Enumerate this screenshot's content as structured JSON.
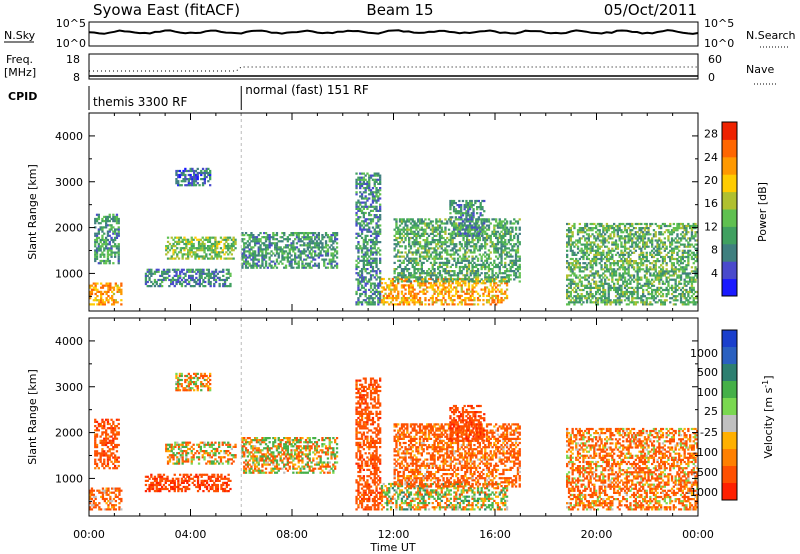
{
  "header": {
    "station": "Syowa East (fitACF)",
    "beam": "Beam 15",
    "date": "05/Oct/2011"
  },
  "noise_panel": {
    "left_label": "N.Sky",
    "right_label": "N.Search",
    "left_ticks": [
      "10^5",
      "10^0"
    ],
    "right_ticks": [
      "10^5",
      "10^0"
    ]
  },
  "freq_panel": {
    "left_label_line1": "Freq.",
    "left_label_line2": "[MHz]",
    "left_ticks": [
      "18",
      "8"
    ],
    "right_ticks": [
      "60",
      "0"
    ],
    "right_label": "Nave"
  },
  "cpid_panel": {
    "label": "CPID",
    "segments": [
      {
        "label": "themis 3300 RF",
        "start_hour": 0,
        "end_hour": 6
      },
      {
        "label": "normal (fast) 151 RF",
        "start_hour": 6,
        "end_hour": 24
      }
    ]
  },
  "chart_data": [
    {
      "type": "heatmap",
      "title": "Power",
      "ylabel": "Slant Range [km]",
      "ylim": [
        180,
        4500
      ],
      "yticks": [
        1000,
        2000,
        3000,
        4000
      ],
      "xlim": [
        0,
        24
      ],
      "colorbar": {
        "label": "Power [dB]",
        "ticks": [
          4,
          8,
          12,
          16,
          20,
          24,
          28
        ],
        "range": [
          0,
          30
        ],
        "colors": [
          "#1a1aff",
          "#4a4acc",
          "#3f7f7f",
          "#40a060",
          "#5fc050",
          "#b0c030",
          "#ffcc00",
          "#ff9900",
          "#ff6600",
          "#ee2200"
        ]
      },
      "echo_regions": [
        {
          "t0": 0.0,
          "t1": 1.3,
          "r0": 300,
          "r1": 800,
          "value": 22
        },
        {
          "t0": 0.2,
          "t1": 1.2,
          "r0": 1200,
          "r1": 2300,
          "value": 10
        },
        {
          "t0": 2.2,
          "t1": 5.6,
          "r0": 700,
          "r1": 1100,
          "value": 8
        },
        {
          "t0": 3.0,
          "t1": 5.8,
          "r0": 1300,
          "r1": 1800,
          "value": 14
        },
        {
          "t0": 3.4,
          "t1": 4.8,
          "r0": 2900,
          "r1": 3300,
          "value": 6
        },
        {
          "t0": 6.0,
          "t1": 9.8,
          "r0": 1100,
          "r1": 1900,
          "value": 10
        },
        {
          "t0": 10.5,
          "t1": 11.5,
          "r0": 300,
          "r1": 3200,
          "value": 9
        },
        {
          "t0": 11.5,
          "t1": 16.5,
          "r0": 300,
          "r1": 900,
          "value": 22
        },
        {
          "t0": 12.0,
          "t1": 17.0,
          "r0": 800,
          "r1": 2200,
          "value": 11
        },
        {
          "t0": 14.2,
          "t1": 15.6,
          "r0": 1800,
          "r1": 2600,
          "value": 9
        },
        {
          "t0": 18.8,
          "t1": 24.0,
          "r0": 300,
          "r1": 2100,
          "value": 12
        }
      ]
    },
    {
      "type": "heatmap",
      "title": "Velocity",
      "ylabel": "Slant Range [km]",
      "xlabel": "Time UT",
      "ylim": [
        180,
        4500
      ],
      "yticks": [
        1000,
        2000,
        3000,
        4000
      ],
      "xlim": [
        0,
        24
      ],
      "xticks": [
        "00:00",
        "04:00",
        "08:00",
        "12:00",
        "16:00",
        "20:00",
        "00:00"
      ],
      "colorbar": {
        "label": "Velocity [m s^-1]",
        "ticks": [
          1000,
          500,
          100,
          25,
          -25,
          -100,
          -500,
          -1000
        ],
        "colors": [
          "#1a3fcc",
          "#2a60c0",
          "#2d7f70",
          "#45b048",
          "#7ad850",
          "#c0c0c0",
          "#ffb000",
          "#ff8000",
          "#ff5000",
          "#ff2000"
        ]
      },
      "echo_regions": [
        {
          "t0": 0.0,
          "t1": 1.3,
          "r0": 300,
          "r1": 800,
          "value": -200
        },
        {
          "t0": 0.2,
          "t1": 1.2,
          "r0": 1200,
          "r1": 2300,
          "value": -300
        },
        {
          "t0": 2.2,
          "t1": 5.6,
          "r0": 700,
          "r1": 1100,
          "value": -400
        },
        {
          "t0": 3.0,
          "t1": 5.8,
          "r0": 1300,
          "r1": 1800,
          "value": 0
        },
        {
          "t0": 3.4,
          "t1": 4.8,
          "r0": 2900,
          "r1": 3300,
          "value": -60
        },
        {
          "t0": 6.0,
          "t1": 9.8,
          "r0": 1100,
          "r1": 1900,
          "value": 0
        },
        {
          "t0": 10.5,
          "t1": 11.5,
          "r0": 300,
          "r1": 3200,
          "value": -300
        },
        {
          "t0": 11.5,
          "t1": 16.5,
          "r0": 300,
          "r1": 900,
          "value": 60
        },
        {
          "t0": 12.0,
          "t1": 17.0,
          "r0": 800,
          "r1": 2200,
          "value": -200
        },
        {
          "t0": 14.2,
          "t1": 15.6,
          "r0": 1800,
          "r1": 2600,
          "value": -400
        },
        {
          "t0": 18.8,
          "t1": 24.0,
          "r0": 300,
          "r1": 2100,
          "value": -150
        }
      ]
    }
  ]
}
